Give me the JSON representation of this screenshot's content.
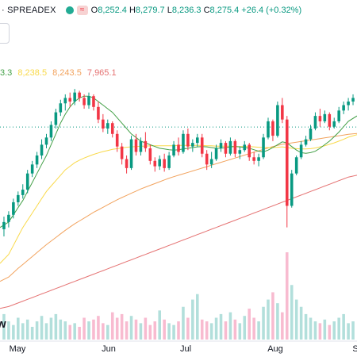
{
  "header": {
    "symbol_partial": "· SPREADEX",
    "wave_glyph": "≈",
    "open_key": "O",
    "open": "8,252.4",
    "high_key": "H",
    "high": "8,279.7",
    "low_key": "L",
    "low": "8,236.3",
    "close_key": "C",
    "close": "8,275.4",
    "change": "+26.4 (+0.32%)"
  },
  "moving_averages": {
    "values": [
      "3.3",
      "8,238.5",
      "8,243.5",
      "7,965.1"
    ],
    "colors": [
      "#43a047",
      "#f9d949",
      "#f2a35e",
      "#e57373"
    ]
  },
  "logo_text": "w",
  "colors": {
    "up": "#089981",
    "down": "#f23645",
    "vol_up": "#b2dfdb",
    "vol_down": "#f8bbd0"
  },
  "chart_data": {
    "type": "candlestick",
    "x_labels": [
      "May",
      "Jun",
      "Jul",
      "Aug",
      "S"
    ],
    "candles": [
      [
        7795,
        7830,
        7775,
        7815
      ],
      [
        7815,
        7845,
        7800,
        7835
      ],
      [
        7835,
        7880,
        7825,
        7870
      ],
      [
        7870,
        7900,
        7860,
        7890
      ],
      [
        7890,
        7920,
        7880,
        7905
      ],
      [
        7905,
        7960,
        7895,
        7950
      ],
      [
        7950,
        7985,
        7940,
        7975
      ],
      [
        7975,
        8010,
        7965,
        8000
      ],
      [
        8000,
        8045,
        7990,
        8030
      ],
      [
        8030,
        8060,
        8020,
        8050
      ],
      [
        8050,
        8095,
        8040,
        8085
      ],
      [
        8085,
        8130,
        8075,
        8120
      ],
      [
        8120,
        8155,
        8110,
        8145
      ],
      [
        8145,
        8170,
        8125,
        8160
      ],
      [
        8160,
        8175,
        8135,
        8150
      ],
      [
        8150,
        8185,
        8140,
        8175
      ],
      [
        8175,
        8180,
        8150,
        8160
      ],
      [
        8160,
        8170,
        8130,
        8140
      ],
      [
        8140,
        8175,
        8130,
        8165
      ],
      [
        8165,
        8170,
        8125,
        8135
      ],
      [
        8135,
        8150,
        8090,
        8100
      ],
      [
        8100,
        8115,
        8065,
        8075
      ],
      [
        8075,
        8100,
        8060,
        8090
      ],
      [
        8090,
        8095,
        8050,
        8060
      ],
      [
        8060,
        8070,
        8010,
        8025
      ],
      [
        8025,
        8035,
        7975,
        7990
      ],
      [
        7990,
        8000,
        7950,
        7965
      ],
      [
        7965,
        8055,
        7960,
        8045
      ],
      [
        8045,
        8060,
        8000,
        8010
      ],
      [
        8010,
        8050,
        8000,
        8040
      ],
      [
        8040,
        8065,
        8010,
        8020
      ],
      [
        8020,
        8030,
        7975,
        7985
      ],
      [
        7985,
        7995,
        7955,
        7970
      ],
      [
        7970,
        8000,
        7960,
        7990
      ],
      [
        7990,
        8005,
        7955,
        7965
      ],
      [
        7965,
        8010,
        7960,
        8000
      ],
      [
        8000,
        8040,
        7995,
        8030
      ],
      [
        8030,
        8050,
        8000,
        8010
      ],
      [
        8010,
        8070,
        8005,
        8060
      ],
      [
        8060,
        8075,
        8015,
        8025
      ],
      [
        8025,
        8045,
        8010,
        8035
      ],
      [
        8035,
        8060,
        8025,
        8050
      ],
      [
        8050,
        8060,
        7995,
        8005
      ],
      [
        8005,
        8015,
        7960,
        7975
      ],
      [
        7975,
        8010,
        7965,
        7990
      ],
      [
        7990,
        8030,
        7985,
        8020
      ],
      [
        8020,
        8045,
        8010,
        8035
      ],
      [
        8035,
        8040,
        7995,
        8005
      ],
      [
        8005,
        8050,
        8000,
        8040
      ],
      [
        8040,
        8045,
        7995,
        8005
      ],
      [
        8005,
        8025,
        7990,
        8015
      ],
      [
        8015,
        8040,
        8010,
        8030
      ],
      [
        8030,
        8035,
        7985,
        7995
      ],
      [
        7995,
        8010,
        7975,
        7985
      ],
      [
        7985,
        8005,
        7970,
        7995
      ],
      [
        7995,
        8060,
        7990,
        8050
      ],
      [
        8050,
        8105,
        8045,
        8095
      ],
      [
        8095,
        8100,
        8040,
        8055
      ],
      [
        8055,
        8150,
        8050,
        8140
      ],
      [
        8140,
        8160,
        8090,
        8100
      ],
      [
        8100,
        8110,
        7800,
        7860
      ],
      [
        7860,
        7960,
        7855,
        7950
      ],
      [
        7950,
        8000,
        7945,
        7995
      ],
      [
        7995,
        8040,
        7990,
        8030
      ],
      [
        8030,
        8055,
        8025,
        8045
      ],
      [
        8045,
        8085,
        8040,
        8075
      ],
      [
        8075,
        8120,
        8070,
        8110
      ],
      [
        8110,
        8130,
        8080,
        8095
      ],
      [
        8095,
        8125,
        8090,
        8115
      ],
      [
        8115,
        8120,
        8070,
        8080
      ],
      [
        8080,
        8105,
        8075,
        8095
      ],
      [
        8095,
        8135,
        8090,
        8125
      ],
      [
        8125,
        8150,
        8115,
        8140
      ],
      [
        8140,
        8160,
        8125,
        8150
      ],
      [
        8150,
        8170,
        8140,
        8160
      ]
    ],
    "volumes": [
      14,
      10,
      8,
      12,
      9,
      11,
      7,
      10,
      13,
      9,
      12,
      14,
      11,
      10,
      8,
      9,
      7,
      12,
      10,
      11,
      13,
      9,
      8,
      15,
      12,
      14,
      10,
      13,
      11,
      9,
      12,
      8,
      10,
      16,
      11,
      9,
      8,
      10,
      18,
      12,
      22,
      25,
      11,
      10,
      9,
      12,
      14,
      10,
      15,
      11,
      9,
      13,
      17,
      12,
      10,
      18,
      22,
      26,
      20,
      15,
      48,
      30,
      22,
      18,
      14,
      12,
      10,
      9,
      11,
      8,
      10,
      12,
      14,
      9,
      10
    ],
    "ma_short": [
      7800,
      7815,
      7835,
      7855,
      7875,
      7900,
      7925,
      7950,
      7975,
      8000,
      8030,
      8060,
      8090,
      8115,
      8135,
      8150,
      8160,
      8165,
      8165,
      8160,
      8150,
      8140,
      8130,
      8120,
      8105,
      8090,
      8075,
      8060,
      8050,
      8040,
      8035,
      8030,
      8025,
      8020,
      8018,
      8016,
      8015,
      8016,
      8018,
      8020,
      8022,
      8024,
      8025,
      8024,
      8022,
      8020,
      8020,
      8022,
      8024,
      8025,
      8024,
      8022,
      8020,
      8016,
      8012,
      8010,
      8015,
      8022,
      8030,
      8038,
      8035,
      8025,
      8015,
      8008,
      8006,
      8008,
      8012,
      8020,
      8030,
      8040,
      8052,
      8065,
      8080,
      8095,
      8110
    ],
    "ma_mid": [
      7700,
      7725,
      7750,
      7775,
      7800,
      7820,
      7840,
      7860,
      7880,
      7900,
      7915,
      7930,
      7945,
      7960,
      7970,
      7980,
      7987,
      7993,
      7998,
      8003,
      8007,
      8011,
      8014,
      8017,
      8019,
      8021,
      8023,
      8024,
      8025,
      8026,
      8026,
      8027,
      8027,
      8027,
      8027,
      8027,
      8027,
      8028,
      8028,
      8028,
      8028,
      8028,
      8028,
      8027,
      8027,
      8026,
      8026,
      8026,
      8026,
      8025,
      8025,
      8025,
      8025,
      8024,
      8023,
      8022,
      8022,
      8022,
      8023,
      8024,
      8022,
      8020,
      8019,
      8018,
      8018,
      8019,
      8021,
      8024,
      8027,
      8031,
      8035,
      8040,
      8045,
      8051,
      8058
    ],
    "ma_long": [
      7650,
      7662,
      7674,
      7686,
      7697,
      7708,
      7719,
      7730,
      7741,
      7752,
      7762,
      7772,
      7782,
      7792,
      7801,
      7810,
      7818,
      7826,
      7834,
      7842,
      7849,
      7856,
      7863,
      7870,
      7877,
      7883,
      7889,
      7895,
      7901,
      7907,
      7912,
      7917,
      7922,
      7927,
      7932,
      7937,
      7941,
      7945,
      7949,
      7953,
      7957,
      7961,
      7965,
      7969,
      7973,
      7977,
      7981,
      7985,
      7989,
      7993,
      7997,
      8001,
      8005,
      8009,
      8013,
      8017,
      8021,
      8025,
      8028,
      8031,
      8033,
      8035,
      8037,
      8039,
      8041,
      8043,
      8045,
      8047,
      8049,
      8051,
      8053,
      8055,
      8057,
      8059,
      8061
    ],
    "ma_longest": [
      7575,
      7580,
      7585,
      7590,
      7595,
      7600,
      7605,
      7610,
      7615,
      7620,
      7625,
      7630,
      7635,
      7640,
      7645,
      7650,
      7655,
      7660,
      7665,
      7670,
      7675,
      7680,
      7685,
      7690,
      7695,
      7700,
      7705,
      7710,
      7715,
      7720,
      7725,
      7730,
      7735,
      7740,
      7745,
      7750,
      7755,
      7760,
      7765,
      7770,
      7775,
      7780,
      7785,
      7790,
      7795,
      7800,
      7805,
      7810,
      7815,
      7820,
      7825,
      7830,
      7835,
      7840,
      7845,
      7850,
      7855,
      7860,
      7865,
      7870,
      7875,
      7880,
      7885,
      7890,
      7895,
      7900,
      7905,
      7910,
      7915,
      7920,
      7925,
      7930,
      7935,
      7940,
      7945
    ],
    "last_price_line": 8079,
    "y_range": [
      7550,
      8300
    ],
    "grid": false
  }
}
